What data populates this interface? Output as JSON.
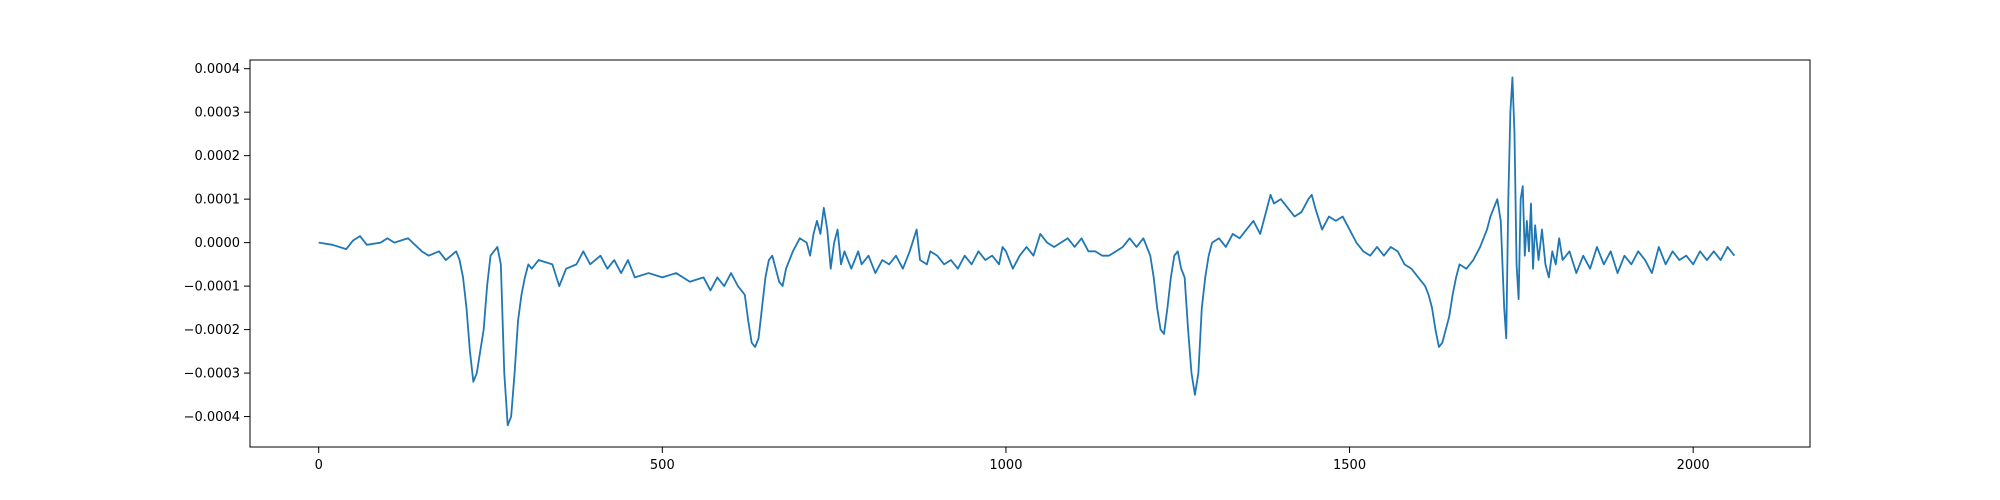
{
  "chart_data": {
    "type": "line",
    "title": "",
    "xlabel": "",
    "ylabel": "",
    "xlim": [
      -100,
      2170
    ],
    "ylim": [
      -0.00047,
      0.00042
    ],
    "grid": false,
    "legend": "none",
    "x_ticks": [
      0,
      500,
      1000,
      1500,
      2000
    ],
    "x_tick_labels": [
      "0",
      "500",
      "1000",
      "1500",
      "2000"
    ],
    "y_ticks": [
      -0.0004,
      -0.0003,
      -0.0002,
      -0.0001,
      0.0,
      0.0001,
      0.0002,
      0.0003,
      0.0004
    ],
    "y_tick_labels": [
      "−0.0004",
      "−0.0003",
      "−0.0002",
      "−0.0001",
      "0.0000",
      "0.0001",
      "0.0002",
      "0.0003",
      "0.0004"
    ],
    "series": [
      {
        "color": "#1f77b4",
        "points": [
          [
            0,
            0.0
          ],
          [
            20,
            -5e-06
          ],
          [
            40,
            -1.5e-05
          ],
          [
            50,
            5e-06
          ],
          [
            60,
            1.5e-05
          ],
          [
            70,
            -5e-06
          ],
          [
            90,
            0.0
          ],
          [
            100,
            1e-05
          ],
          [
            110,
            0.0
          ],
          [
            130,
            1e-05
          ],
          [
            150,
            -2e-05
          ],
          [
            160,
            -3e-05
          ],
          [
            175,
            -2e-05
          ],
          [
            185,
            -4e-05
          ],
          [
            200,
            -2e-05
          ],
          [
            205,
            -4e-05
          ],
          [
            210,
            -8e-05
          ],
          [
            215,
            -0.00015
          ],
          [
            220,
            -0.00025
          ],
          [
            225,
            -0.00032
          ],
          [
            230,
            -0.0003
          ],
          [
            240,
            -0.0002
          ],
          [
            245,
            -0.0001
          ],
          [
            250,
            -3e-05
          ],
          [
            255,
            -2e-05
          ],
          [
            260,
            -1e-05
          ],
          [
            265,
            -5e-05
          ],
          [
            270,
            -0.0003
          ],
          [
            275,
            -0.00042
          ],
          [
            280,
            -0.0004
          ],
          [
            285,
            -0.0003
          ],
          [
            290,
            -0.00018
          ],
          [
            295,
            -0.00012
          ],
          [
            300,
            -8e-05
          ],
          [
            305,
            -5e-05
          ],
          [
            310,
            -6e-05
          ],
          [
            320,
            -4e-05
          ],
          [
            340,
            -5e-05
          ],
          [
            350,
            -0.0001
          ],
          [
            360,
            -6e-05
          ],
          [
            375,
            -5e-05
          ],
          [
            385,
            -2e-05
          ],
          [
            395,
            -5e-05
          ],
          [
            410,
            -3e-05
          ],
          [
            420,
            -6e-05
          ],
          [
            430,
            -4e-05
          ],
          [
            440,
            -7e-05
          ],
          [
            450,
            -4e-05
          ],
          [
            460,
            -8e-05
          ],
          [
            480,
            -7e-05
          ],
          [
            500,
            -8e-05
          ],
          [
            520,
            -7e-05
          ],
          [
            540,
            -9e-05
          ],
          [
            560,
            -8e-05
          ],
          [
            570,
            -0.00011
          ],
          [
            580,
            -8e-05
          ],
          [
            590,
            -0.0001
          ],
          [
            600,
            -7e-05
          ],
          [
            610,
            -0.0001
          ],
          [
            620,
            -0.00012
          ],
          [
            625,
            -0.00018
          ],
          [
            630,
            -0.00023
          ],
          [
            635,
            -0.00024
          ],
          [
            640,
            -0.00022
          ],
          [
            645,
            -0.00015
          ],
          [
            650,
            -8e-05
          ],
          [
            655,
            -4e-05
          ],
          [
            660,
            -3e-05
          ],
          [
            670,
            -9e-05
          ],
          [
            675,
            -0.0001
          ],
          [
            680,
            -6e-05
          ],
          [
            690,
            -2e-05
          ],
          [
            700,
            1e-05
          ],
          [
            710,
            0.0
          ],
          [
            715,
            -3e-05
          ],
          [
            720,
            2e-05
          ],
          [
            725,
            5e-05
          ],
          [
            730,
            2e-05
          ],
          [
            735,
            8e-05
          ],
          [
            740,
            3e-05
          ],
          [
            745,
            -6e-05
          ],
          [
            750,
            0.0
          ],
          [
            755,
            3e-05
          ],
          [
            760,
            -5e-05
          ],
          [
            765,
            -2e-05
          ],
          [
            775,
            -6e-05
          ],
          [
            785,
            -2e-05
          ],
          [
            790,
            -5e-05
          ],
          [
            800,
            -3e-05
          ],
          [
            810,
            -7e-05
          ],
          [
            820,
            -4e-05
          ],
          [
            830,
            -5e-05
          ],
          [
            840,
            -3e-05
          ],
          [
            850,
            -6e-05
          ],
          [
            860,
            -2e-05
          ],
          [
            870,
            3e-05
          ],
          [
            875,
            -4e-05
          ],
          [
            885,
            -5e-05
          ],
          [
            890,
            -2e-05
          ],
          [
            900,
            -3e-05
          ],
          [
            910,
            -5e-05
          ],
          [
            920,
            -4e-05
          ],
          [
            930,
            -6e-05
          ],
          [
            940,
            -3e-05
          ],
          [
            950,
            -5e-05
          ],
          [
            960,
            -2e-05
          ],
          [
            970,
            -4e-05
          ],
          [
            980,
            -3e-05
          ],
          [
            990,
            -5e-05
          ],
          [
            995,
            -1e-05
          ],
          [
            1000,
            -2e-05
          ],
          [
            1010,
            -6e-05
          ],
          [
            1020,
            -3e-05
          ],
          [
            1030,
            -1e-05
          ],
          [
            1040,
            -3e-05
          ],
          [
            1050,
            2e-05
          ],
          [
            1060,
            0.0
          ],
          [
            1070,
            -1e-05
          ],
          [
            1080,
            0.0
          ],
          [
            1090,
            1e-05
          ],
          [
            1100,
            -1e-05
          ],
          [
            1110,
            1e-05
          ],
          [
            1120,
            -2e-05
          ],
          [
            1130,
            -2e-05
          ],
          [
            1140,
            -3e-05
          ],
          [
            1150,
            -3e-05
          ],
          [
            1160,
            -2e-05
          ],
          [
            1170,
            -1e-05
          ],
          [
            1180,
            1e-05
          ],
          [
            1190,
            -1e-05
          ],
          [
            1200,
            1e-05
          ],
          [
            1210,
            -3e-05
          ],
          [
            1215,
            -8e-05
          ],
          [
            1220,
            -0.00015
          ],
          [
            1225,
            -0.0002
          ],
          [
            1230,
            -0.00021
          ],
          [
            1235,
            -0.00015
          ],
          [
            1240,
            -8e-05
          ],
          [
            1245,
            -3e-05
          ],
          [
            1250,
            -2e-05
          ],
          [
            1255,
            -6e-05
          ],
          [
            1260,
            -8e-05
          ],
          [
            1265,
            -0.0002
          ],
          [
            1270,
            -0.0003
          ],
          [
            1275,
            -0.00035
          ],
          [
            1280,
            -0.0003
          ],
          [
            1285,
            -0.00015
          ],
          [
            1290,
            -8e-05
          ],
          [
            1295,
            -3e-05
          ],
          [
            1300,
            0.0
          ],
          [
            1310,
            1e-05
          ],
          [
            1320,
            -1e-05
          ],
          [
            1330,
            2e-05
          ],
          [
            1340,
            1e-05
          ],
          [
            1350,
            3e-05
          ],
          [
            1360,
            5e-05
          ],
          [
            1370,
            2e-05
          ],
          [
            1380,
            8e-05
          ],
          [
            1385,
            0.00011
          ],
          [
            1390,
            9e-05
          ],
          [
            1400,
            0.0001
          ],
          [
            1410,
            8e-05
          ],
          [
            1420,
            6e-05
          ],
          [
            1430,
            7e-05
          ],
          [
            1440,
            0.0001
          ],
          [
            1445,
            0.00011
          ],
          [
            1450,
            8e-05
          ],
          [
            1460,
            3e-05
          ],
          [
            1470,
            6e-05
          ],
          [
            1480,
            5e-05
          ],
          [
            1490,
            6e-05
          ],
          [
            1500,
            3e-05
          ],
          [
            1510,
            0.0
          ],
          [
            1520,
            -2e-05
          ],
          [
            1530,
            -3e-05
          ],
          [
            1540,
            -1e-05
          ],
          [
            1550,
            -3e-05
          ],
          [
            1560,
            -1e-05
          ],
          [
            1570,
            -2e-05
          ],
          [
            1580,
            -5e-05
          ],
          [
            1590,
            -6e-05
          ],
          [
            1600,
            -8e-05
          ],
          [
            1610,
            -0.0001
          ],
          [
            1615,
            -0.00012
          ],
          [
            1620,
            -0.00015
          ],
          [
            1625,
            -0.0002
          ],
          [
            1630,
            -0.00024
          ],
          [
            1635,
            -0.00023
          ],
          [
            1640,
            -0.0002
          ],
          [
            1645,
            -0.00017
          ],
          [
            1650,
            -0.00012
          ],
          [
            1655,
            -8e-05
          ],
          [
            1660,
            -5e-05
          ],
          [
            1670,
            -6e-05
          ],
          [
            1680,
            -4e-05
          ],
          [
            1690,
            -1e-05
          ],
          [
            1700,
            3e-05
          ],
          [
            1705,
            6e-05
          ],
          [
            1710,
            8e-05
          ],
          [
            1715,
            0.0001
          ],
          [
            1720,
            5e-05
          ],
          [
            1725,
            -0.00015
          ],
          [
            1728,
            -0.00022
          ],
          [
            1731,
            0.0001
          ],
          [
            1734,
            0.0003
          ],
          [
            1737,
            0.00038
          ],
          [
            1740,
            0.00025
          ],
          [
            1743,
            -5e-05
          ],
          [
            1746,
            -0.00013
          ],
          [
            1749,
            0.0001
          ],
          [
            1752,
            0.00013
          ],
          [
            1755,
            -3e-05
          ],
          [
            1758,
            5e-05
          ],
          [
            1761,
            -2e-05
          ],
          [
            1764,
            9e-05
          ],
          [
            1767,
            -6e-05
          ],
          [
            1770,
            4e-05
          ],
          [
            1775,
            -4e-05
          ],
          [
            1780,
            3e-05
          ],
          [
            1785,
            -5e-05
          ],
          [
            1790,
            -8e-05
          ],
          [
            1795,
            -2e-05
          ],
          [
            1800,
            -5e-05
          ],
          [
            1805,
            1e-05
          ],
          [
            1810,
            -4e-05
          ],
          [
            1820,
            -2e-05
          ],
          [
            1830,
            -7e-05
          ],
          [
            1840,
            -3e-05
          ],
          [
            1850,
            -6e-05
          ],
          [
            1860,
            -1e-05
          ],
          [
            1870,
            -5e-05
          ],
          [
            1880,
            -2e-05
          ],
          [
            1890,
            -7e-05
          ],
          [
            1900,
            -3e-05
          ],
          [
            1910,
            -5e-05
          ],
          [
            1920,
            -2e-05
          ],
          [
            1930,
            -4e-05
          ],
          [
            1940,
            -7e-05
          ],
          [
            1950,
            -1e-05
          ],
          [
            1960,
            -5e-05
          ],
          [
            1970,
            -2e-05
          ],
          [
            1980,
            -4e-05
          ],
          [
            1990,
            -3e-05
          ],
          [
            2000,
            -5e-05
          ],
          [
            2010,
            -2e-05
          ],
          [
            2020,
            -4e-05
          ],
          [
            2030,
            -2e-05
          ],
          [
            2040,
            -4e-05
          ],
          [
            2050,
            -1e-05
          ],
          [
            2060,
            -3e-05
          ]
        ]
      }
    ]
  }
}
